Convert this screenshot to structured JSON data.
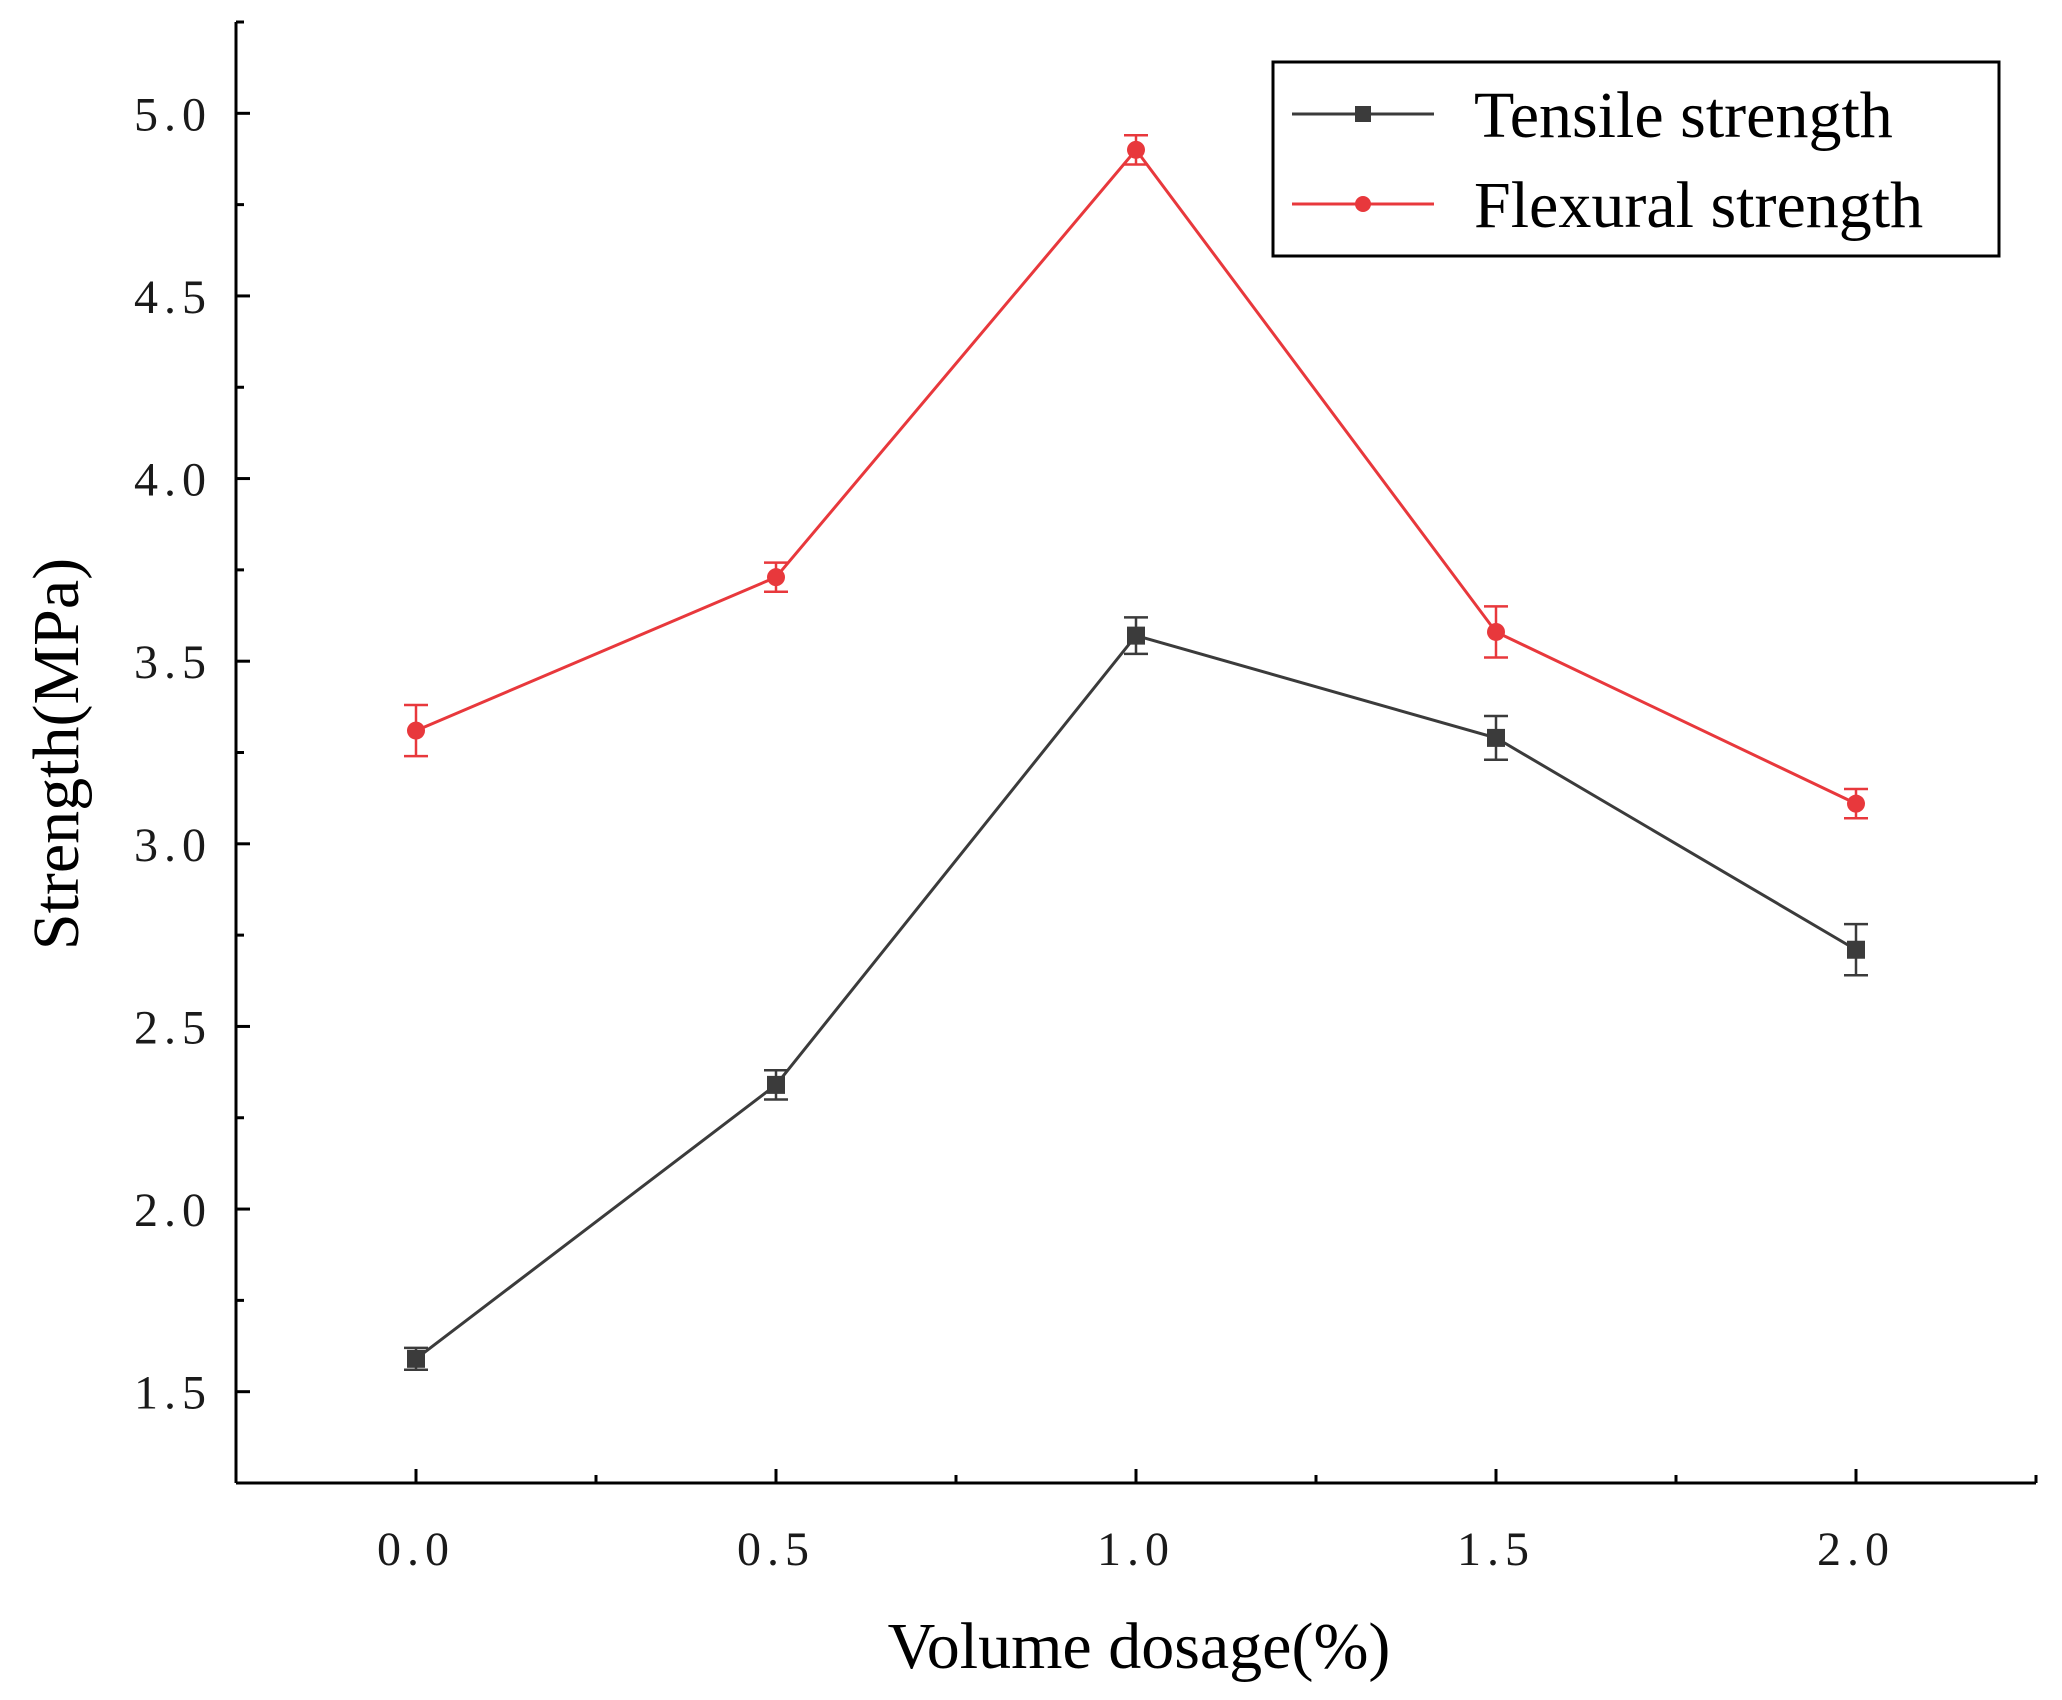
{
  "chart_data": {
    "type": "line",
    "title": "",
    "xlabel": "Volume dosage(%)",
    "ylabel": "Strength(MPa)",
    "x": [
      0.0,
      0.5,
      1.0,
      1.5,
      2.0
    ],
    "xticks": [
      "0.0",
      "0.5",
      "1.0",
      "1.5",
      "2.0"
    ],
    "yticks": [
      "1.5",
      "2.0",
      "2.5",
      "3.0",
      "3.5",
      "4.0",
      "4.5",
      "5.0"
    ],
    "xlim": [
      -0.25,
      2.25
    ],
    "ylim": [
      1.25,
      5.25
    ],
    "grid": false,
    "legend_position": "top-right",
    "series": [
      {
        "name": "Tensile strength",
        "color": "#3b3b3b",
        "marker": "square",
        "values": [
          1.59,
          2.34,
          3.57,
          3.29,
          2.71
        ],
        "errors": [
          0.03,
          0.04,
          0.05,
          0.06,
          0.07
        ]
      },
      {
        "name": "Flexural strength",
        "color": "#e8383c",
        "marker": "circle",
        "values": [
          3.31,
          3.73,
          4.9,
          3.58,
          3.11
        ],
        "errors": [
          0.07,
          0.04,
          0.04,
          0.07,
          0.04
        ]
      }
    ]
  }
}
